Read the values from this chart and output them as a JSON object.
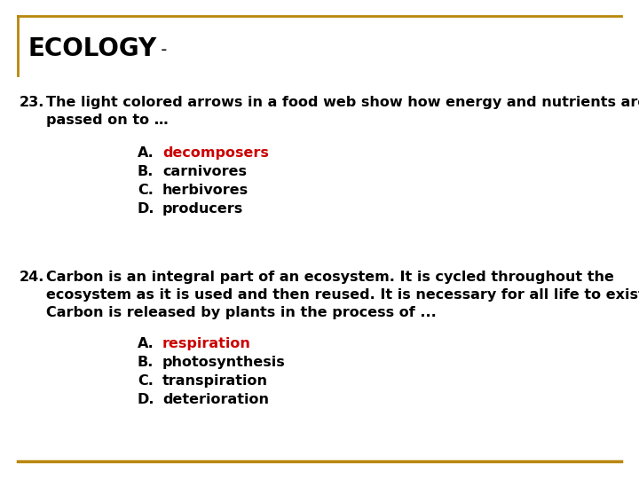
{
  "title": "ECOLOGY",
  "title_dash": " -",
  "border_color": "#B8860B",
  "bg_color": "#FFFFFF",
  "q23_number": "23. ",
  "q23_line1": "The light colored arrows in a food web show how energy and nutrients are",
  "q23_line2": "passed on to …",
  "q23_answers": [
    {
      "letter": "A.",
      "text": "decomposers",
      "color": "#CC0000"
    },
    {
      "letter": "B.",
      "text": "carnivores",
      "color": "#000000"
    },
    {
      "letter": "C.",
      "text": "herbivores",
      "color": "#000000"
    },
    {
      "letter": "D.",
      "text": "producers",
      "color": "#000000"
    }
  ],
  "q24_number": "24. ",
  "q24_line1": "Carbon is an integral part of an ecosystem. It is cycled throughout the",
  "q24_line2": "ecosystem as it is used and then reused. It is necessary for all life to exist.",
  "q24_line3": "Carbon is released by plants in the process of ...",
  "q24_answers": [
    {
      "letter": "A.",
      "text": "respiration",
      "color": "#CC0000"
    },
    {
      "letter": "B.",
      "text": "photosynthesis",
      "color": "#000000"
    },
    {
      "letter": "C.",
      "text": "transpiration",
      "color": "#000000"
    },
    {
      "letter": "D.",
      "text": "deterioration",
      "color": "#000000"
    }
  ],
  "bottom_line_color": "#B8860B",
  "font_size_title": 20,
  "font_size_body": 11.5,
  "font_size_answers": 11.5
}
